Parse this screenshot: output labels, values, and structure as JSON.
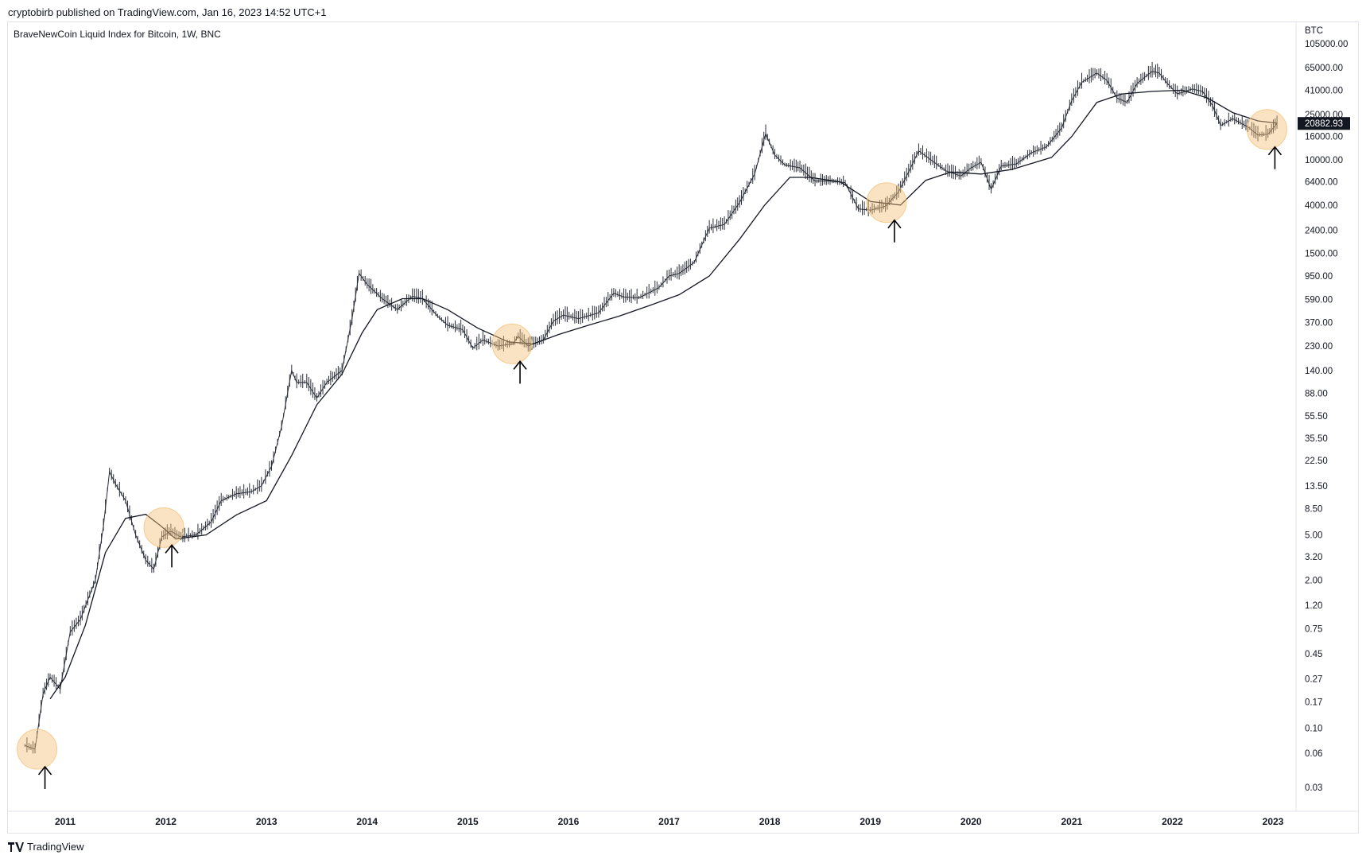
{
  "publisher_line": "cryptobirb published on TradingView.com, Jan 16, 2023 14:52 UTC+1",
  "brand": "TradingView",
  "chart_data": {
    "type": "line",
    "title": "BraveNewCoin Liquid Index for Bitcoin, 1W, BNC",
    "yscale": "log",
    "currency_label": "BTC",
    "y_ticks": [
      "105000.00",
      "65000.00",
      "41000.00",
      "25000.00",
      "16000.00",
      "10000.00",
      "6400.00",
      "4000.00",
      "2400.00",
      "1500.00",
      "950.00",
      "590.00",
      "370.00",
      "230.00",
      "140.00",
      "88.00",
      "55.50",
      "35.50",
      "22.50",
      "13.50",
      "8.50",
      "5.00",
      "3.20",
      "2.00",
      "1.20",
      "0.75",
      "0.45",
      "0.27",
      "0.17",
      "0.10",
      "0.06",
      "0.03"
    ],
    "x_ticks": [
      "2011",
      "2012",
      "2013",
      "2014",
      "2015",
      "2016",
      "2017",
      "2018",
      "2019",
      "2020",
      "2021",
      "2022",
      "2023"
    ],
    "last_price_label": "20882.93",
    "series": [
      {
        "values": [
          [
            2010.6,
            0.07
          ],
          [
            2010.7,
            0.065
          ],
          [
            2010.78,
            0.2
          ],
          [
            2010.85,
            0.28
          ],
          [
            2010.95,
            0.22
          ],
          [
            2011.05,
            0.7
          ],
          [
            2011.15,
            0.9
          ],
          [
            2011.3,
            2.0
          ],
          [
            2011.38,
            6.0
          ],
          [
            2011.44,
            18.0
          ],
          [
            2011.5,
            14.0
          ],
          [
            2011.6,
            10.0
          ],
          [
            2011.7,
            5.0
          ],
          [
            2011.8,
            3.0
          ],
          [
            2011.88,
            2.5
          ],
          [
            2011.96,
            4.8
          ],
          [
            2012.05,
            5.4
          ],
          [
            2012.15,
            4.8
          ],
          [
            2012.3,
            5.0
          ],
          [
            2012.45,
            6.5
          ],
          [
            2012.55,
            10.0
          ],
          [
            2012.7,
            11.5
          ],
          [
            2012.85,
            12.0
          ],
          [
            2012.95,
            13.5
          ],
          [
            2013.05,
            20.0
          ],
          [
            2013.15,
            45.0
          ],
          [
            2013.25,
            140.0
          ],
          [
            2013.3,
            110.0
          ],
          [
            2013.4,
            110.0
          ],
          [
            2013.5,
            80.0
          ],
          [
            2013.6,
            110.0
          ],
          [
            2013.75,
            140.0
          ],
          [
            2013.85,
            400.0
          ],
          [
            2013.92,
            1000.0
          ],
          [
            2014.0,
            800.0
          ],
          [
            2014.15,
            600.0
          ],
          [
            2014.3,
            480.0
          ],
          [
            2014.45,
            630.0
          ],
          [
            2014.55,
            600.0
          ],
          [
            2014.7,
            420.0
          ],
          [
            2014.8,
            350.0
          ],
          [
            2014.95,
            320.0
          ],
          [
            2015.05,
            220.0
          ],
          [
            2015.15,
            260.0
          ],
          [
            2015.3,
            230.0
          ],
          [
            2015.45,
            240.0
          ],
          [
            2015.5,
            280.0
          ],
          [
            2015.6,
            230.0
          ],
          [
            2015.75,
            260.0
          ],
          [
            2015.85,
            380.0
          ],
          [
            2015.95,
            430.0
          ],
          [
            2016.1,
            400.0
          ],
          [
            2016.3,
            450.0
          ],
          [
            2016.45,
            670.0
          ],
          [
            2016.55,
            620.0
          ],
          [
            2016.7,
            610.0
          ],
          [
            2016.9,
            750.0
          ],
          [
            2017.0,
            950.0
          ],
          [
            2017.1,
            1000.0
          ],
          [
            2017.25,
            1250.0
          ],
          [
            2017.4,
            2500.0
          ],
          [
            2017.55,
            2700.0
          ],
          [
            2017.7,
            4200.0
          ],
          [
            2017.85,
            7500.0
          ],
          [
            2017.96,
            17000.0
          ],
          [
            2018.05,
            11000.0
          ],
          [
            2018.15,
            9000.0
          ],
          [
            2018.3,
            8500.0
          ],
          [
            2018.45,
            6500.0
          ],
          [
            2018.6,
            6500.0
          ],
          [
            2018.75,
            6300.0
          ],
          [
            2018.88,
            3700.0
          ],
          [
            2019.0,
            3600.0
          ],
          [
            2019.15,
            3900.0
          ],
          [
            2019.28,
            5200.0
          ],
          [
            2019.4,
            8500.0
          ],
          [
            2019.48,
            12000.0
          ],
          [
            2019.6,
            10000.0
          ],
          [
            2019.75,
            8000.0
          ],
          [
            2019.9,
            7200.0
          ],
          [
            2020.0,
            8500.0
          ],
          [
            2020.1,
            9500.0
          ],
          [
            2020.2,
            5500.0
          ],
          [
            2020.3,
            8800.0
          ],
          [
            2020.45,
            9200.0
          ],
          [
            2020.6,
            11500.0
          ],
          [
            2020.75,
            13000.0
          ],
          [
            2020.9,
            19000.0
          ],
          [
            2021.0,
            33000.0
          ],
          [
            2021.1,
            48000.0
          ],
          [
            2021.25,
            58000.0
          ],
          [
            2021.35,
            50000.0
          ],
          [
            2021.45,
            35000.0
          ],
          [
            2021.55,
            32000.0
          ],
          [
            2021.65,
            47000.0
          ],
          [
            2021.8,
            60000.0
          ],
          [
            2021.87,
            58000.0
          ],
          [
            2021.95,
            47000.0
          ],
          [
            2022.05,
            38000.0
          ],
          [
            2022.2,
            42000.0
          ],
          [
            2022.3,
            40000.0
          ],
          [
            2022.4,
            30000.0
          ],
          [
            2022.48,
            20000.0
          ],
          [
            2022.6,
            23000.0
          ],
          [
            2022.75,
            19500.0
          ],
          [
            2022.85,
            16500.0
          ],
          [
            2022.95,
            16800.0
          ],
          [
            2023.04,
            20900.0
          ]
        ]
      },
      {
        "values": [
          [
            2010.85,
            0.18
          ],
          [
            2011.0,
            0.28
          ],
          [
            2011.2,
            0.8
          ],
          [
            2011.4,
            3.5
          ],
          [
            2011.6,
            7.0
          ],
          [
            2011.8,
            7.6
          ],
          [
            2011.95,
            6.0
          ],
          [
            2012.1,
            4.6
          ],
          [
            2012.4,
            5.0
          ],
          [
            2012.7,
            7.5
          ],
          [
            2013.0,
            10.0
          ],
          [
            2013.25,
            25.0
          ],
          [
            2013.5,
            70.0
          ],
          [
            2013.75,
            130.0
          ],
          [
            2013.95,
            300.0
          ],
          [
            2014.1,
            480.0
          ],
          [
            2014.35,
            600.0
          ],
          [
            2014.55,
            600.0
          ],
          [
            2014.8,
            480.0
          ],
          [
            2015.1,
            330.0
          ],
          [
            2015.4,
            250.0
          ],
          [
            2015.65,
            240.0
          ],
          [
            2015.9,
            290.0
          ],
          [
            2016.2,
            350.0
          ],
          [
            2016.5,
            420.0
          ],
          [
            2016.8,
            520.0
          ],
          [
            2017.1,
            650.0
          ],
          [
            2017.4,
            950.0
          ],
          [
            2017.7,
            2000.0
          ],
          [
            2017.95,
            4000.0
          ],
          [
            2018.2,
            7000.0
          ],
          [
            2018.4,
            7000.0
          ],
          [
            2018.7,
            6400.0
          ],
          [
            2019.0,
            4300.0
          ],
          [
            2019.3,
            4000.0
          ],
          [
            2019.55,
            6600.0
          ],
          [
            2019.8,
            7800.0
          ],
          [
            2020.1,
            7500.0
          ],
          [
            2020.4,
            8200.0
          ],
          [
            2020.8,
            10500.0
          ],
          [
            2021.0,
            16000.0
          ],
          [
            2021.25,
            32000.0
          ],
          [
            2021.5,
            38000.0
          ],
          [
            2021.8,
            40000.0
          ],
          [
            2022.1,
            41000.0
          ],
          [
            2022.35,
            35000.0
          ],
          [
            2022.6,
            26000.0
          ],
          [
            2022.85,
            22000.0
          ],
          [
            2023.04,
            21000.0
          ]
        ]
      }
    ],
    "highlights": [
      {
        "x": 2010.72,
        "y": 0.065
      },
      {
        "x": 2011.98,
        "y": 5.8
      },
      {
        "x": 2015.44,
        "y": 240.0
      },
      {
        "x": 2019.16,
        "y": 4200.0
      },
      {
        "x": 2022.94,
        "y": 18500.0
      }
    ],
    "colors": {
      "price_line": "#2a2e39",
      "ma_line": "#131722",
      "highlight_fill": "#f5c27a",
      "axis_text": "#131722",
      "border": "#e0e3eb",
      "price_label_bg": "#131722",
      "price_label_text": "#ffffff"
    }
  }
}
